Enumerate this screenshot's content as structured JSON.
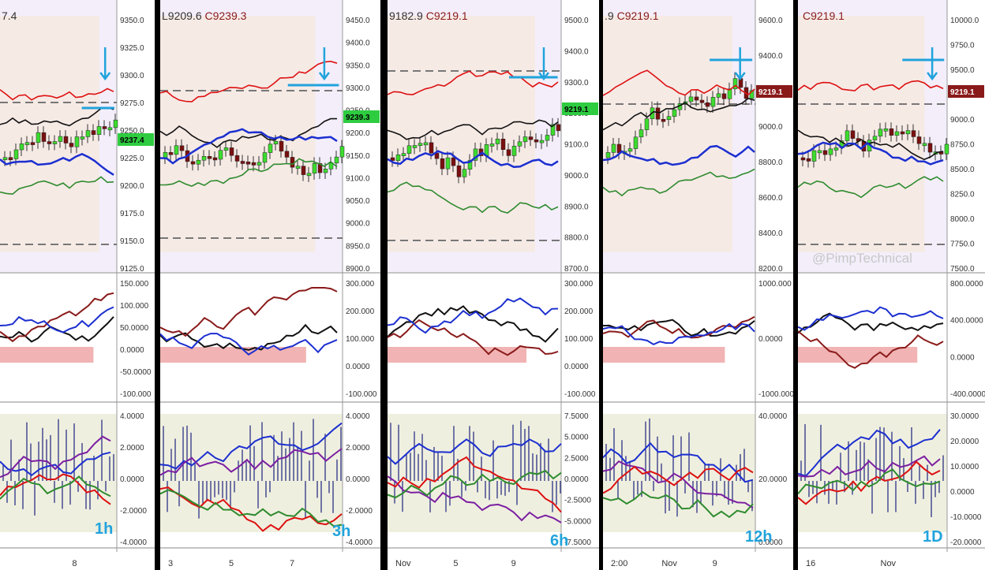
{
  "watermark": "@PimpTechnical",
  "panels": [
    {
      "id": "p1h",
      "timeframe": "1h",
      "header": {
        "low": "",
        "close": ""
      },
      "header_prefix": "7.4",
      "y_ticks": [
        "9350.0",
        "9325.0",
        "9300.0",
        "9275.0",
        "9250.0",
        "9225.0",
        "9200.0",
        "9175.0",
        "9150.0",
        "9125.0"
      ],
      "price_tag": "9237.4",
      "price_tag_color": "#2ecc40",
      "osc1_ticks": [
        "150.000",
        "100.000",
        "50.0000",
        "0.0000",
        "-50.0000",
        "-100.000"
      ],
      "osc2_ticks": [
        "4.0000",
        "2.0000",
        "0.0000",
        "-2.0000",
        "-4.0000"
      ],
      "date_ticks": [
        "8"
      ]
    },
    {
      "id": "p3h",
      "timeframe": "3h",
      "header": {
        "low": "L9209.6",
        "close": "C9239.3"
      },
      "header_prefix": "",
      "y_ticks": [
        "9450.0",
        "9400.0",
        "9350.0",
        "9300.0",
        "9250.0",
        "9200.0",
        "9150.0",
        "9100.0",
        "9050.0",
        "9000.0",
        "8950.0",
        "8900.0"
      ],
      "price_tag": "9239.3",
      "price_tag_color": "#2ecc40",
      "osc1_ticks": [
        "300.000",
        "200.000",
        "100.000",
        "0.0000",
        "-100.000"
      ],
      "osc2_ticks": [
        "4.0000",
        "2.0000",
        "0.0000",
        "-2.0000",
        "-4.0000"
      ],
      "date_ticks": [
        "3",
        "5",
        "7"
      ]
    },
    {
      "id": "p6h",
      "timeframe": "6h",
      "header": {
        "low": "9182.9",
        "close": "C9219.1"
      },
      "header_prefix": "",
      "y_ticks": [
        "9500.0",
        "9400.0",
        "9300.0",
        "9200.0",
        "9100.0",
        "9000.0",
        "8900.0",
        "8800.0",
        "8700.0"
      ],
      "price_tag": "9219.1",
      "price_tag_color": "#2ecc40",
      "osc1_ticks": [
        "300.000",
        "200.000",
        "100.000",
        "0.0000",
        "-100.000"
      ],
      "osc2_ticks": [
        "7.5000",
        "5.0000",
        "2.5000",
        "0.0000",
        "-2.5000",
        "-5.0000",
        "-7.5000"
      ],
      "date_ticks": [
        "Nov",
        "5",
        "9"
      ]
    },
    {
      "id": "p12h",
      "timeframe": "12h",
      "header": {
        "low": ".9",
        "close": "C9219.1"
      },
      "header_prefix": "",
      "y_ticks": [
        "9600.0",
        "9400.0",
        "9200.0",
        "9000.0",
        "8800.0",
        "8600.0",
        "8400.0",
        "8200.0"
      ],
      "price_tag": "9219.1",
      "price_tag_color": "#8a1a1a",
      "osc1_ticks": [
        "1000.000",
        "0.0000",
        "-1000.000"
      ],
      "osc2_ticks": [
        "40.0000",
        "20.0000",
        "0.0000"
      ],
      "date_ticks": [
        "2:00",
        "Nov",
        "9"
      ]
    },
    {
      "id": "p1d",
      "timeframe": "1D",
      "header": {
        "low": "",
        "close": "C9219.1"
      },
      "header_prefix": "",
      "y_ticks": [
        "10000.0",
        "9750.0",
        "9500.0",
        "9250.0",
        "9000.0",
        "8750.0",
        "8500.0",
        "8250.0",
        "8000.0",
        "7750.0",
        "7500.0"
      ],
      "price_tag": "9219.1",
      "price_tag_color": "#8a1a1a",
      "osc1_ticks": [
        "800.0000",
        "400.0000",
        "0.0000",
        "-400.0000"
      ],
      "osc2_ticks": [
        "30.0000",
        "20.0000",
        "10.0000",
        "0.0000",
        "-10.0000",
        "-20.0000"
      ],
      "date_ticks": [
        "16",
        "Nov"
      ]
    }
  ]
}
